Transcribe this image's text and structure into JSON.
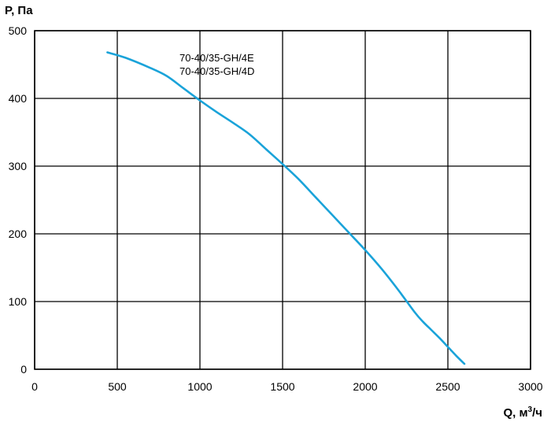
{
  "chart_data": {
    "type": "line",
    "title": "",
    "ylabel": "P, Па",
    "xlabel_prefix": "Q, м",
    "xlabel_sup": "3",
    "xlabel_suffix": "/ч",
    "xlim": [
      0,
      3000
    ],
    "ylim": [
      0,
      500
    ],
    "xticks": [
      0,
      500,
      1000,
      1500,
      2000,
      2500,
      3000
    ],
    "yticks": [
      0,
      100,
      200,
      300,
      400,
      500
    ],
    "grid": true,
    "legend": "none",
    "annotations": [
      "70-40/35-GH/4E",
      "70-40/35-GH/4D"
    ],
    "series": [
      {
        "color": "#1aa3d9",
        "x": [
          440,
          550,
          700,
          800,
          900,
          1000,
          1100,
          1200,
          1300,
          1400,
          1500,
          1600,
          1700,
          1800,
          1900,
          2000,
          2100,
          2200,
          2300,
          2350,
          2400,
          2450,
          2500,
          2550,
          2600
        ],
        "y": [
          468,
          460,
          445,
          433,
          415,
          397,
          380,
          364,
          347,
          325,
          303,
          280,
          254,
          228,
          202,
          176,
          148,
          117,
          84,
          70,
          58,
          46,
          33,
          20,
          8
        ]
      }
    ]
  }
}
